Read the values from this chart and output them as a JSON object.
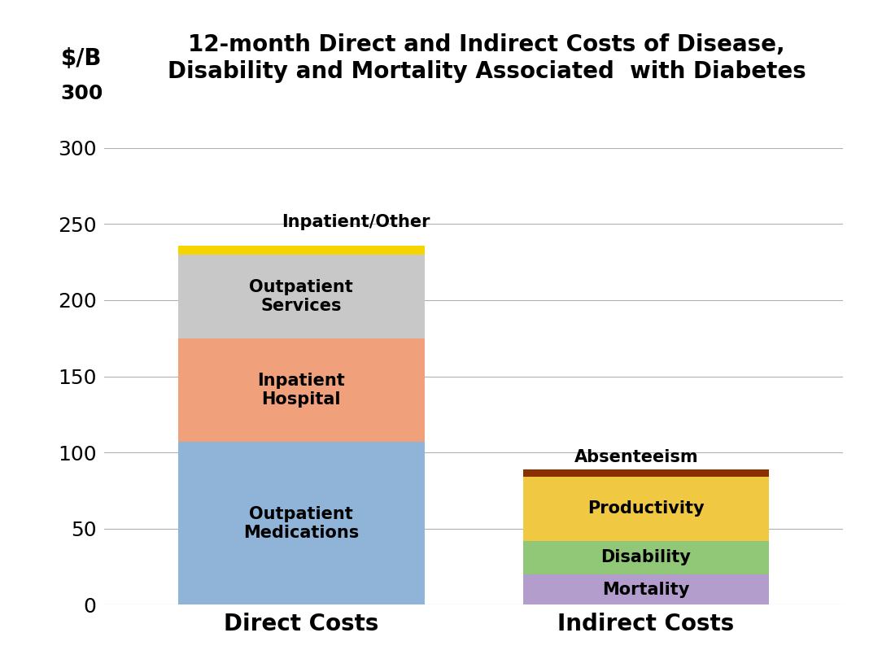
{
  "categories": [
    "Direct Costs",
    "Indirect Costs"
  ],
  "title_line1": "12-month Direct and Indirect Costs of Disease,",
  "title_line2": "Disability and Mortality Associated  with Diabetes",
  "ylim": [
    0,
    300
  ],
  "yticks": [
    0,
    50,
    100,
    150,
    200,
    250,
    300
  ],
  "direct_costs": {
    "segments": [
      {
        "label": "Outpatient\nMedications",
        "value": 107,
        "color": "#8fb4d8"
      },
      {
        "label": "Inpatient\nHospital",
        "value": 68,
        "color": "#f0a07a"
      },
      {
        "label": "Outpatient\nServices",
        "value": 55,
        "color": "#c8c8c8"
      },
      {
        "label": "Inpatient/Other",
        "value": 6,
        "color": "#f5d400"
      }
    ]
  },
  "indirect_costs": {
    "segments": [
      {
        "label": "Mortality",
        "value": 20,
        "color": "#b39dcc"
      },
      {
        "label": "Disability",
        "value": 22,
        "color": "#90c878"
      },
      {
        "label": "Productivity",
        "value": 42,
        "color": "#f0c842"
      },
      {
        "label": "Absenteeism",
        "value": 5,
        "color": "#8b3000"
      }
    ]
  },
  "bar_width": 0.5,
  "background_color": "#ffffff",
  "label_fontsize": 15,
  "title_fontsize": 20,
  "tick_fontsize": 18,
  "axis_label_fontsize": 20,
  "inpatient_other_annotation": "Inpatient/Other",
  "absenteeism_annotation": "Absenteeism",
  "x_positions": [
    0.35,
    1.05
  ]
}
